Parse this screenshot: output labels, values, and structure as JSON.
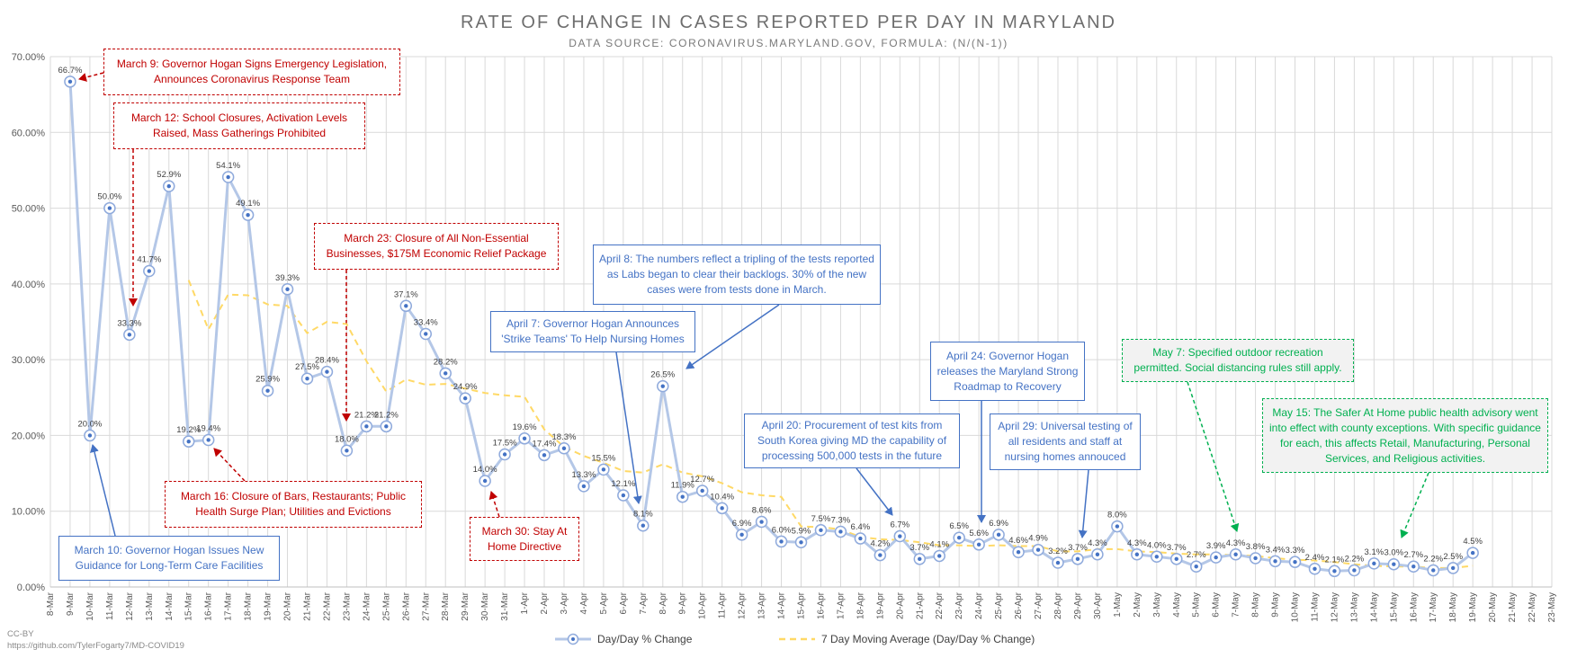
{
  "title": "RATE OF CHANGE IN CASES REPORTED PER DAY IN MARYLAND",
  "subtitle": "DATA SOURCE: CORONAVIRUS.MARYLAND.GOV, FORMULA: (N/(N-1))",
  "credit": {
    "license": "CC-BY",
    "url": "https://github.com/TylerFogarty7/MD-COVID19"
  },
  "colors": {
    "series_line": "#b4c7e7",
    "marker_stroke": "#8faadc",
    "marker_dot": "#4472c4",
    "moving_avg": "#ffd966",
    "grid": "#d9d9d9",
    "red": "#c00000",
    "blue": "#4472c4",
    "green": "#00b050"
  },
  "chart_data": {
    "type": "line",
    "title": "RATE OF CHANGE IN CASES REPORTED PER DAY IN MARYLAND",
    "subtitle": "DATA SOURCE: CORONAVIRUS.MARYLAND.GOV, FORMULA: (N/(N-1))",
    "ylim": [
      0,
      70
    ],
    "yticks": [
      "0.00%",
      "10.00%",
      "20.00%",
      "30.00%",
      "40.00%",
      "50.00%",
      "60.00%",
      "70.00%"
    ],
    "grid": true,
    "legend_position": "bottom",
    "categories": [
      "8-Mar",
      "9-Mar",
      "10-Mar",
      "11-Mar",
      "12-Mar",
      "13-Mar",
      "14-Mar",
      "15-Mar",
      "16-Mar",
      "17-Mar",
      "18-Mar",
      "19-Mar",
      "20-Mar",
      "21-Mar",
      "22-Mar",
      "23-Mar",
      "24-Mar",
      "25-Mar",
      "26-Mar",
      "27-Mar",
      "28-Mar",
      "29-Mar",
      "30-Mar",
      "31-Mar",
      "1-Apr",
      "2-Apr",
      "3-Apr",
      "4-Apr",
      "5-Apr",
      "6-Apr",
      "7-Apr",
      "8-Apr",
      "9-Apr",
      "10-Apr",
      "11-Apr",
      "12-Apr",
      "13-Apr",
      "14-Apr",
      "15-Apr",
      "16-Apr",
      "17-Apr",
      "18-Apr",
      "19-Apr",
      "20-Apr",
      "21-Apr",
      "22-Apr",
      "23-Apr",
      "24-Apr",
      "25-Apr",
      "26-Apr",
      "27-Apr",
      "28-Apr",
      "29-Apr",
      "30-Apr",
      "1-May",
      "2-May",
      "3-May",
      "4-May",
      "5-May",
      "6-May",
      "7-May",
      "8-May",
      "9-May",
      "10-May",
      "11-May",
      "12-May",
      "13-May",
      "14-May",
      "15-May",
      "16-May",
      "17-May",
      "18-May",
      "19-May",
      "20-May",
      "21-May",
      "22-May",
      "23-May"
    ],
    "series": [
      {
        "name": "Day/Day % Change",
        "values": [
          null,
          66.7,
          20.0,
          50.0,
          33.3,
          41.7,
          52.9,
          19.2,
          19.4,
          54.1,
          49.1,
          25.9,
          39.3,
          27.5,
          28.4,
          18.0,
          21.2,
          21.2,
          37.1,
          33.4,
          28.2,
          24.9,
          14.0,
          17.5,
          19.6,
          17.4,
          18.3,
          13.3,
          15.5,
          12.1,
          8.1,
          26.5,
          11.9,
          12.7,
          10.4,
          6.9,
          8.6,
          6.0,
          5.9,
          7.5,
          7.3,
          6.4,
          4.2,
          6.7,
          3.7,
          4.1,
          6.5,
          5.6,
          6.9,
          4.6,
          4.9,
          3.2,
          3.7,
          4.3,
          8.0,
          4.3,
          4.0,
          3.7,
          2.7,
          3.9,
          4.3,
          3.8,
          3.4,
          3.3,
          2.4,
          2.1,
          2.2,
          3.1,
          3.0,
          2.7,
          2.2,
          2.5,
          4.5,
          null,
          null,
          null,
          null
        ],
        "labels": [
          null,
          "66.7%",
          "20.0%",
          "50.0%",
          "33.3%",
          "41.7%",
          "52.9%",
          "19.2%",
          "19.4%",
          "54.1%",
          "49.1%",
          "25.9%",
          "39.3%",
          "27.5%",
          "28.4%",
          "18.0%",
          "21.2%",
          "21.2%",
          "37.1%",
          "33.4%",
          "28.2%",
          "24.9%",
          "14.0%",
          "17.5%",
          "19.6%",
          "17.4%",
          "18.3%",
          "13.3%",
          "15.5%",
          "12.1%",
          "8.1%",
          "26.5%",
          "11.9%",
          "12.7%",
          "10.4%",
          "6.9%",
          "8.6%",
          "6.0%",
          "5.9%",
          "7.5%",
          "7.3%",
          "6.4%",
          "4.2%",
          "6.7%",
          "3.7%",
          "4.1%",
          "6.5%",
          "5.6%",
          "6.9%",
          "4.6%",
          "4.9%",
          "3.2%",
          "3.7%",
          "4.3%",
          "8.0%",
          "4.3%",
          "4.0%",
          "3.7%",
          "2.7%",
          "3.9%",
          "4.3%",
          "3.8%",
          "3.4%",
          "3.3%",
          "2.4%",
          "2.1%",
          "2.2%",
          "3.1%",
          "3.0%",
          "2.7%",
          "2.2%",
          "2.5%",
          "4.5%",
          null,
          null,
          null,
          null
        ]
      },
      {
        "name": "7 Day Moving Average (Day/Day % Change)",
        "values": [
          null,
          null,
          null,
          null,
          null,
          null,
          null,
          40.5,
          34.0,
          38.6,
          38.5,
          37.3,
          37.1,
          33.5,
          35.0,
          34.7,
          29.8,
          25.8,
          27.4,
          26.7,
          26.8,
          26.2,
          25.6,
          25.3,
          25.1,
          20.8,
          18.5,
          17.3,
          16.4,
          15.3,
          15.1,
          16.2,
          15.1,
          14.6,
          13.7,
          12.5,
          12.1,
          11.9,
          8.0,
          7.9,
          7.6,
          6.6,
          6.3,
          6.2,
          5.9,
          5.5,
          5.5,
          5.4,
          5.5,
          5.4,
          5.4,
          4.7,
          4.7,
          5.0,
          5.0,
          4.7,
          4.6,
          4.4,
          4.3,
          4.3,
          4.2,
          4.1,
          3.8,
          3.6,
          3.5,
          3.3,
          3.0,
          2.8,
          2.7,
          2.7,
          2.5,
          2.5,
          2.8,
          null,
          null,
          null,
          null
        ]
      }
    ]
  },
  "annotations": [
    {
      "id": "march-9",
      "style": "red",
      "text": "March 9: Governor Hogan Signs Emergency Legislation, Announces Coronavirus Response Team"
    },
    {
      "id": "march-12",
      "style": "red",
      "text": "March 12: School Closures, Activation Levels Raised, Mass Gatherings Prohibited"
    },
    {
      "id": "march-16",
      "style": "red",
      "text": "March 16: Closure of Bars, Restaurants; Public Health Surge Plan; Utilities and Evictions"
    },
    {
      "id": "march-23",
      "style": "red",
      "text": "March 23: Closure of All Non-Essential Businesses, $175M Economic Relief Package"
    },
    {
      "id": "march-30",
      "style": "red",
      "text": "March 30: Stay At Home Directive"
    },
    {
      "id": "march-10",
      "style": "blue",
      "text": "March 10: Governor Hogan Issues New Guidance for Long-Term Care Facilities"
    },
    {
      "id": "april-7",
      "style": "blue",
      "text": "April 7: Governor Hogan Announces 'Strike Teams' To Help Nursing Homes"
    },
    {
      "id": "april-8",
      "style": "blue",
      "text": "April 8: The numbers reflect a tripling of the tests reported as Labs began to clear their backlogs. 30% of the new cases were from tests done in March."
    },
    {
      "id": "april-20",
      "style": "blue",
      "text": "April 20: Procurement of test kits from South Korea giving MD the capability of processing 500,000 tests in the future"
    },
    {
      "id": "april-24",
      "style": "blue",
      "text": "April 24: Governor Hogan releases the Maryland Strong Roadmap to Recovery"
    },
    {
      "id": "april-29",
      "style": "blue",
      "text": "April 29: Universal testing of all residents and staff at nursing homes annouced"
    },
    {
      "id": "may-7",
      "style": "green",
      "text": "May 7: Specified outdoor recreation permitted. Social distancing rules still apply."
    },
    {
      "id": "may-15",
      "style": "green",
      "text": "May 15: The Safer At Home public health advisory went into effect with county exceptions. With specific guidance for each, this affects Retail, Manufacturing, Personal Services, and Religious activities."
    }
  ],
  "legend": {
    "series1": "Day/Day % Change",
    "series2": "7 Day Moving Average (Day/Day % Change)"
  }
}
